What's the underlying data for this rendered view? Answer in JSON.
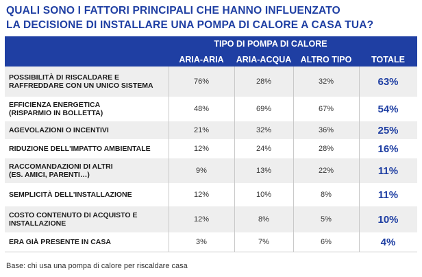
{
  "chart_data": {
    "type": "table",
    "title_lines": [
      "QUALI SONO I FATTORI PRINCIPALI CHE HANNO INFLUENZATO",
      "LA DECISIONE DI INSTALLARE UNA POMPA DI CALORE A CASA TUA?"
    ],
    "group_header": "TIPO DI POMPA DI CALORE",
    "columns": [
      "ARIA-ARIA",
      "ARIA-ACQUA",
      "ALTRO TIPO",
      "TOTALE"
    ],
    "rows": [
      {
        "label_lines": [
          "POSSIBILITÀ DI RISCALDARE E",
          "RAFFREDDARE CON UN UNICO SISTEMA"
        ],
        "values": [
          "76%",
          "28%",
          "32%",
          "63%"
        ]
      },
      {
        "label_lines": [
          "EFFICIENZA ENERGETICA",
          "(RISPARMIO IN BOLLETTA)"
        ],
        "values": [
          "48%",
          "69%",
          "67%",
          "54%"
        ]
      },
      {
        "label_lines": [
          "AGEVOLAZIONI O INCENTIVI"
        ],
        "values": [
          "21%",
          "32%",
          "36%",
          "25%"
        ]
      },
      {
        "label_lines": [
          "RIDUZIONE DELL'IMPATTO AMBIENTALE"
        ],
        "values": [
          "12%",
          "24%",
          "28%",
          "16%"
        ]
      },
      {
        "label_lines": [
          "RACCOMANDAZIONI DI ALTRI",
          "(ES. AMICI, PARENTI…)"
        ],
        "values": [
          "9%",
          "13%",
          "22%",
          "11%"
        ]
      },
      {
        "label_lines": [
          "SEMPLICITÀ DELL'INSTALLAZIONE"
        ],
        "values": [
          "12%",
          "10%",
          "8%",
          "11%"
        ]
      },
      {
        "label_lines": [
          "COSTO CONTENUTO DI ACQUISTO E",
          "INSTALLAZIONE"
        ],
        "values": [
          "12%",
          "8%",
          "5%",
          "10%"
        ]
      },
      {
        "label_lines": [
          "ERA GIÀ PRESENTE IN CASA"
        ],
        "values": [
          "3%",
          "7%",
          "6%",
          "4%"
        ]
      }
    ],
    "footnote": "Base: chi usa una pompa di calore per riscaldare casa",
    "colors": {
      "header_bg": "#1f3fa3",
      "title": "#1f3fa3",
      "total": "#1f3fa3",
      "alt_row": "#eeeeee"
    }
  }
}
